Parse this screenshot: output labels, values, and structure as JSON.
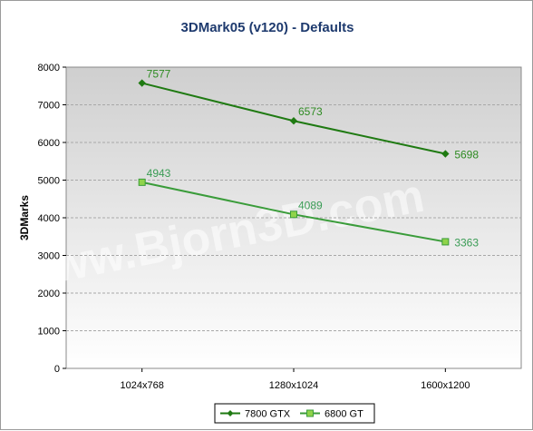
{
  "chart_data": {
    "type": "line",
    "title": "3DMark05 (v120) - Defaults",
    "ylabel": "3DMarks",
    "xlabel": "",
    "categories": [
      "1024x768",
      "1280x1024",
      "1600x1200"
    ],
    "ylim": [
      0,
      8000
    ],
    "yticks": [
      0,
      1000,
      2000,
      3000,
      4000,
      5000,
      6000,
      7000,
      8000
    ],
    "grid": true,
    "legend_position": "bottom",
    "watermark": "www.Bjorn3D.com",
    "series": [
      {
        "name": "7800 GTX",
        "values": [
          7577,
          6573,
          5698
        ],
        "color": "#1f7a12",
        "label_color": "#2e8b22",
        "marker": "diamond"
      },
      {
        "name": "6800 GT",
        "values": [
          4943,
          4089,
          3363
        ],
        "color": "#3a9c3a",
        "label_color": "#3a9c55",
        "marker": "square",
        "marker_fill": "#8fd34a"
      }
    ]
  }
}
